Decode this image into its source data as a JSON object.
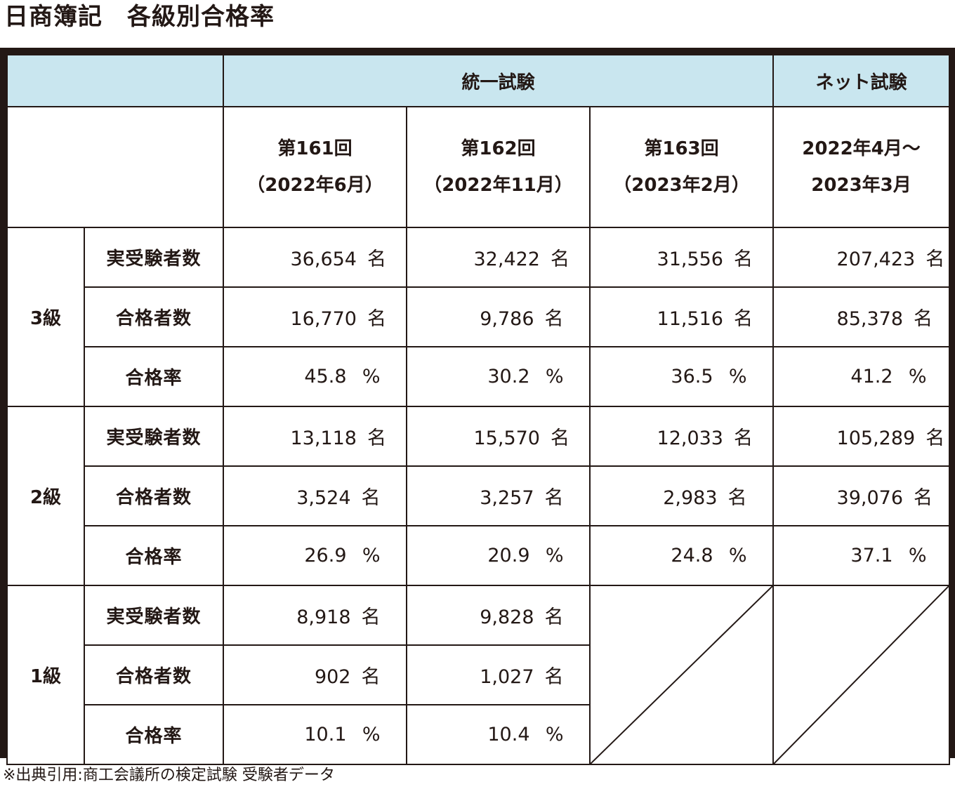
{
  "title": "日商簿記　各級別合格率",
  "header": {
    "unified": "統一試験",
    "net": "ネット試験",
    "sessions": [
      {
        "line1": "第161回",
        "line2": "（2022年6月）"
      },
      {
        "line1": "第162回",
        "line2": "（2022年11月）"
      },
      {
        "line1": "第163回",
        "line2": "（2023年2月）"
      },
      {
        "line1": "2022年4月～",
        "line2": "2023年3月"
      }
    ]
  },
  "metrics": {
    "examinees": "実受験者数",
    "passers": "合格者数",
    "rate": "合格率"
  },
  "units": {
    "person": "名",
    "percent": "%"
  },
  "grades": [
    {
      "label": "3級",
      "examinees": [
        "36,654",
        "32,422",
        "31,556",
        "207,423"
      ],
      "passers": [
        "16,770",
        "9,786",
        "11,516",
        "85,378"
      ],
      "rate": [
        "45.8",
        "30.2",
        "36.5",
        "41.2"
      ]
    },
    {
      "label": "2級",
      "examinees": [
        "13,118",
        "15,570",
        "12,033",
        "105,289"
      ],
      "passers": [
        "3,524",
        "3,257",
        "2,983",
        "39,076"
      ],
      "rate": [
        "26.9",
        "20.9",
        "24.8",
        "37.1"
      ]
    },
    {
      "label": "1級",
      "examinees": [
        "8,918",
        "9,828"
      ],
      "passers": [
        "902",
        "1,027"
      ],
      "rate": [
        "10.1",
        "10.4"
      ]
    }
  ],
  "footnote": "※出典引用:商工会議所の検定試験 受験者データ",
  "colors": {
    "header_bg": "#c9e6ef",
    "border": "#231815"
  }
}
